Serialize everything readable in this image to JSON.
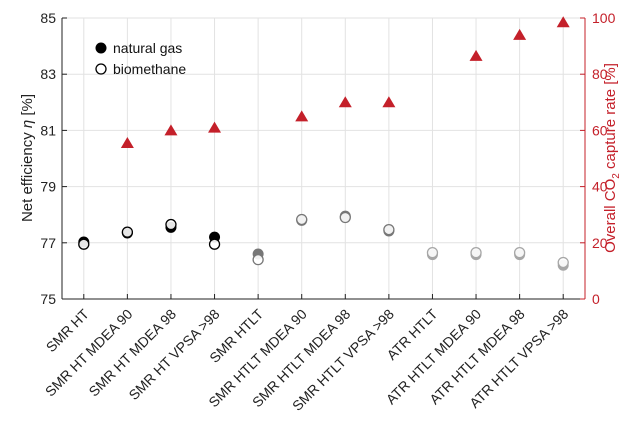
{
  "chart_data": {
    "type": "scatter",
    "categories": [
      "SMR HT",
      "SMR HT MDEA 90",
      "SMR HT MDEA 98",
      "SMR HT VPSA >98",
      "SMR HTLT",
      "SMR HTLT MDEA 90",
      "SMR HTLT MDEA 98",
      "SMR HTLT VPSA >98",
      "ATR HTLT",
      "ATR HTLT MDEA 90",
      "ATR HTLT MDEA 98",
      "ATR HTLT VPSA >98"
    ],
    "y_left": {
      "label_prefix": "Net efficiency ",
      "label_symbol": "η",
      "label_suffix": " [%]",
      "lim": [
        75,
        85
      ],
      "ticks": [
        "75",
        "77",
        "79",
        "81",
        "83",
        "85"
      ]
    },
    "y_right": {
      "label_prefix": "Overall CO",
      "label_sub": "2",
      "label_suffix": " capture rate [%]",
      "lim": [
        0,
        100
      ],
      "ticks": [
        "0",
        "20",
        "40",
        "60",
        "80",
        "100"
      ],
      "color": "#c4202a"
    },
    "series": [
      {
        "name": "natural gas",
        "axis": "left",
        "marker": "filled-circle",
        "values": [
          77.03,
          77.35,
          77.55,
          77.2,
          76.6,
          77.8,
          77.95,
          77.42,
          76.58,
          76.58,
          76.58,
          76.2
        ],
        "colors": [
          "#000000",
          "#000000",
          "#000000",
          "#000000",
          "#777777",
          "#777777",
          "#777777",
          "#777777",
          "#a6a6a6",
          "#a6a6a6",
          "#a6a6a6",
          "#a6a6a6"
        ]
      },
      {
        "name": "biomethane",
        "axis": "left",
        "marker": "open-circle",
        "values": [
          76.95,
          77.38,
          77.65,
          76.95,
          76.4,
          77.83,
          77.9,
          77.47,
          76.65,
          76.65,
          76.65,
          76.3
        ],
        "colors": [
          "#000000",
          "#000000",
          "#000000",
          "#000000",
          "#777777",
          "#777777",
          "#777777",
          "#777777",
          "#a6a6a6",
          "#a6a6a6",
          "#a6a6a6",
          "#a6a6a6"
        ]
      },
      {
        "axis": "right",
        "marker": "triangle",
        "color": "#c4202a",
        "values": [
          null,
          55.5,
          60,
          61,
          null,
          65,
          70,
          70,
          null,
          86.5,
          94,
          98.5
        ]
      }
    ],
    "grid": true,
    "legend_position": "top-left"
  }
}
